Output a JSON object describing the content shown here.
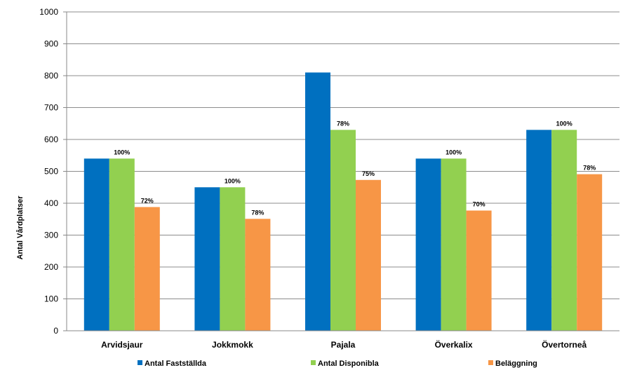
{
  "chart_data": {
    "type": "bar",
    "title": "",
    "xlabel": "",
    "ylabel": "Antal Vårdplatser",
    "ylim": [
      0,
      1000
    ],
    "yticks": [
      0,
      100,
      200,
      300,
      400,
      500,
      600,
      700,
      800,
      900,
      1000
    ],
    "grid": true,
    "legend_position": "bottom",
    "categories": [
      "Arvidsjaur",
      "Jokkmokk",
      "Pajala",
      "Överkalix",
      "Övertorneå"
    ],
    "series": [
      {
        "name": "Antal Fastställda",
        "color": "#0070C0",
        "values": [
          540,
          450,
          810,
          540,
          630
        ],
        "labels": [
          "",
          "",
          "",
          "",
          ""
        ]
      },
      {
        "name": "Antal Disponibla",
        "color": "#92D050",
        "values": [
          540,
          450,
          630,
          540,
          630
        ],
        "labels": [
          "100%",
          "100%",
          "78%",
          "100%",
          "100%"
        ]
      },
      {
        "name": "Beläggning",
        "color": "#F79646",
        "values": [
          388,
          351,
          473,
          377,
          491
        ],
        "labels": [
          "72%",
          "78%",
          "75%",
          "70%",
          "78%"
        ]
      }
    ]
  }
}
